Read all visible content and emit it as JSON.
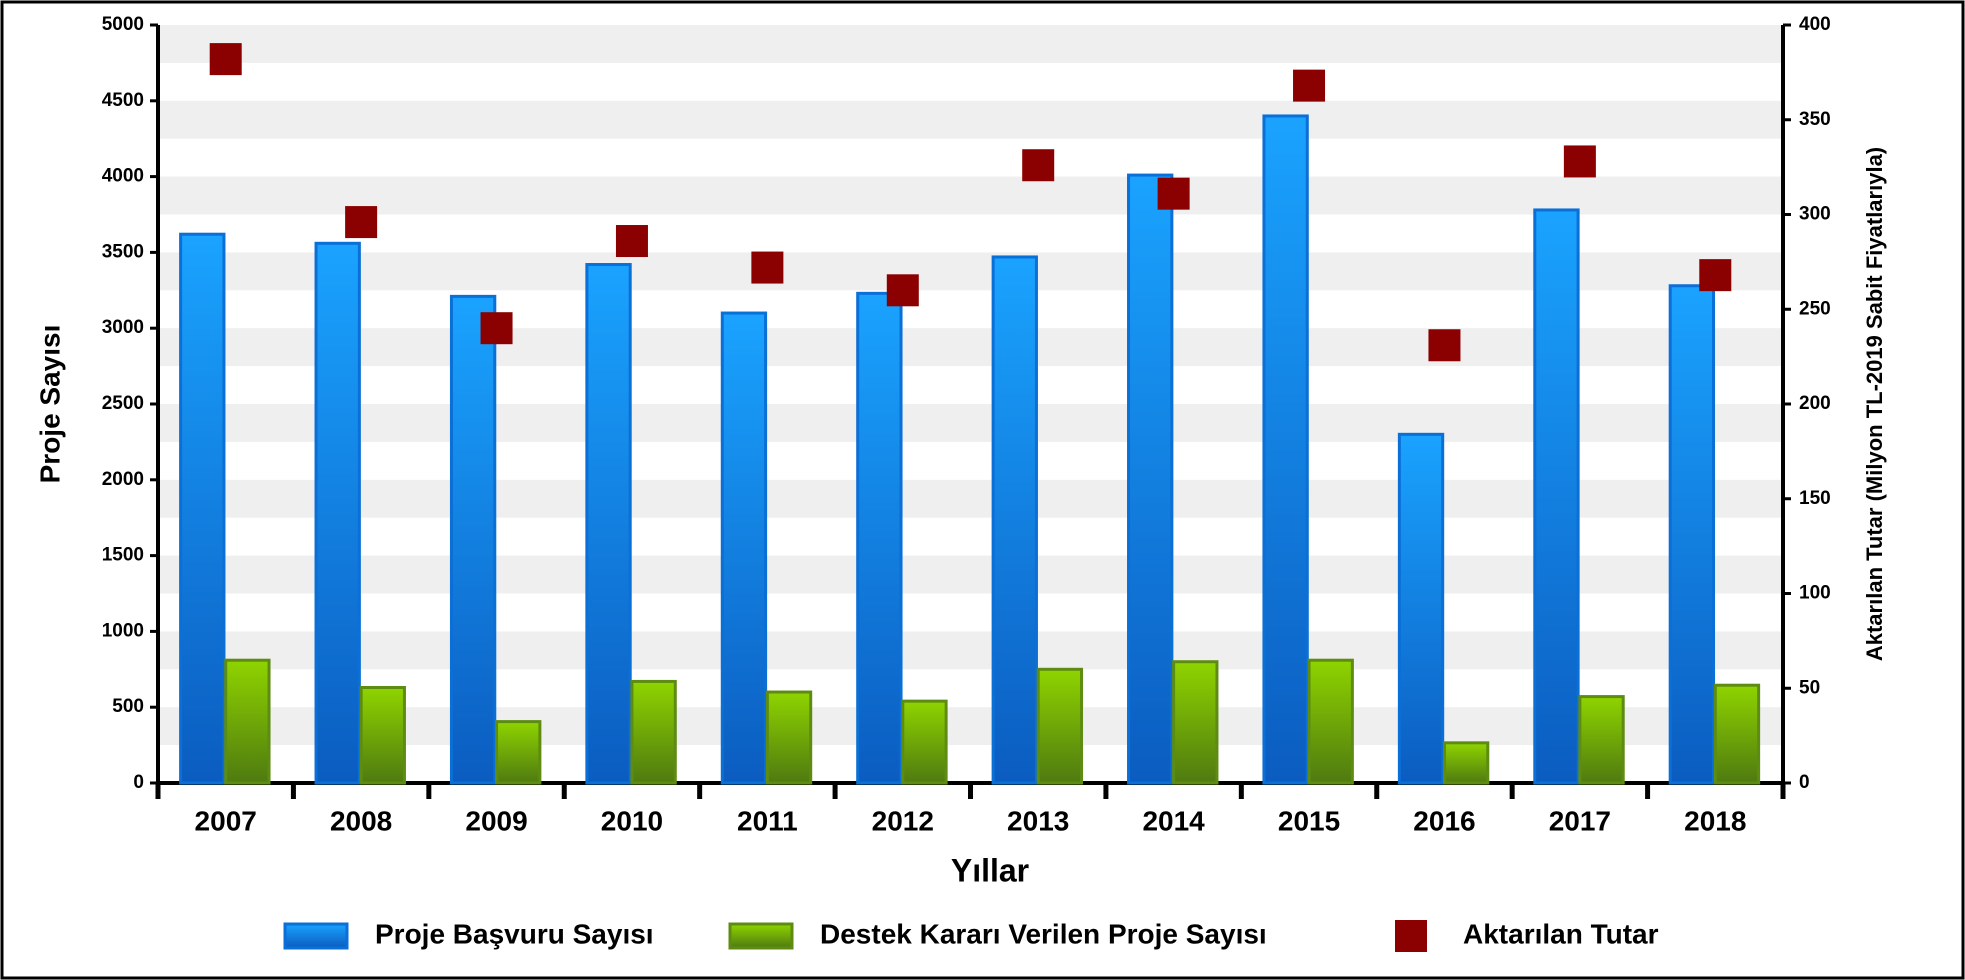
{
  "chart_data": {
    "type": "bar",
    "xlabel": "Yıllar",
    "ylabel": "Proje Sayısı",
    "y2label": "Aktarılan Tutar (Milyon TL-2019 Sabit Fiyatlarıyla)",
    "categories": [
      "2007",
      "2008",
      "2009",
      "2010",
      "2011",
      "2012",
      "2013",
      "2014",
      "2015",
      "2016",
      "2017",
      "2018"
    ],
    "series": [
      {
        "name": "Proje Başvuru Sayısı",
        "color": "#1e90ff",
        "type": "bar",
        "values": [
          3620,
          3560,
          3210,
          3420,
          3100,
          3230,
          3470,
          4010,
          4400,
          2300,
          3780,
          3280
        ]
      },
      {
        "name": "Destek Kararı Verilen Proje Sayısı",
        "color": "#7cb518",
        "type": "bar",
        "values": [
          810,
          630,
          405,
          670,
          600,
          540,
          750,
          800,
          810,
          265,
          570,
          645
        ]
      },
      {
        "name": "Aktarılan Tutar",
        "color": "#8b0000",
        "type": "scatter",
        "axis": "y2",
        "values": [
          382,
          296,
          240,
          286,
          272,
          260,
          326,
          311,
          368,
          231,
          328,
          268
        ]
      }
    ],
    "ylim": [
      0,
      5000
    ],
    "yticks": [
      0,
      500,
      1000,
      1500,
      2000,
      2500,
      3000,
      3500,
      4000,
      4500,
      5000
    ],
    "y2lim": [
      0,
      400
    ],
    "y2ticks": [
      0,
      50,
      100,
      150,
      200,
      250,
      300,
      350,
      400
    ],
    "grid": true,
    "legend": "bottom"
  }
}
